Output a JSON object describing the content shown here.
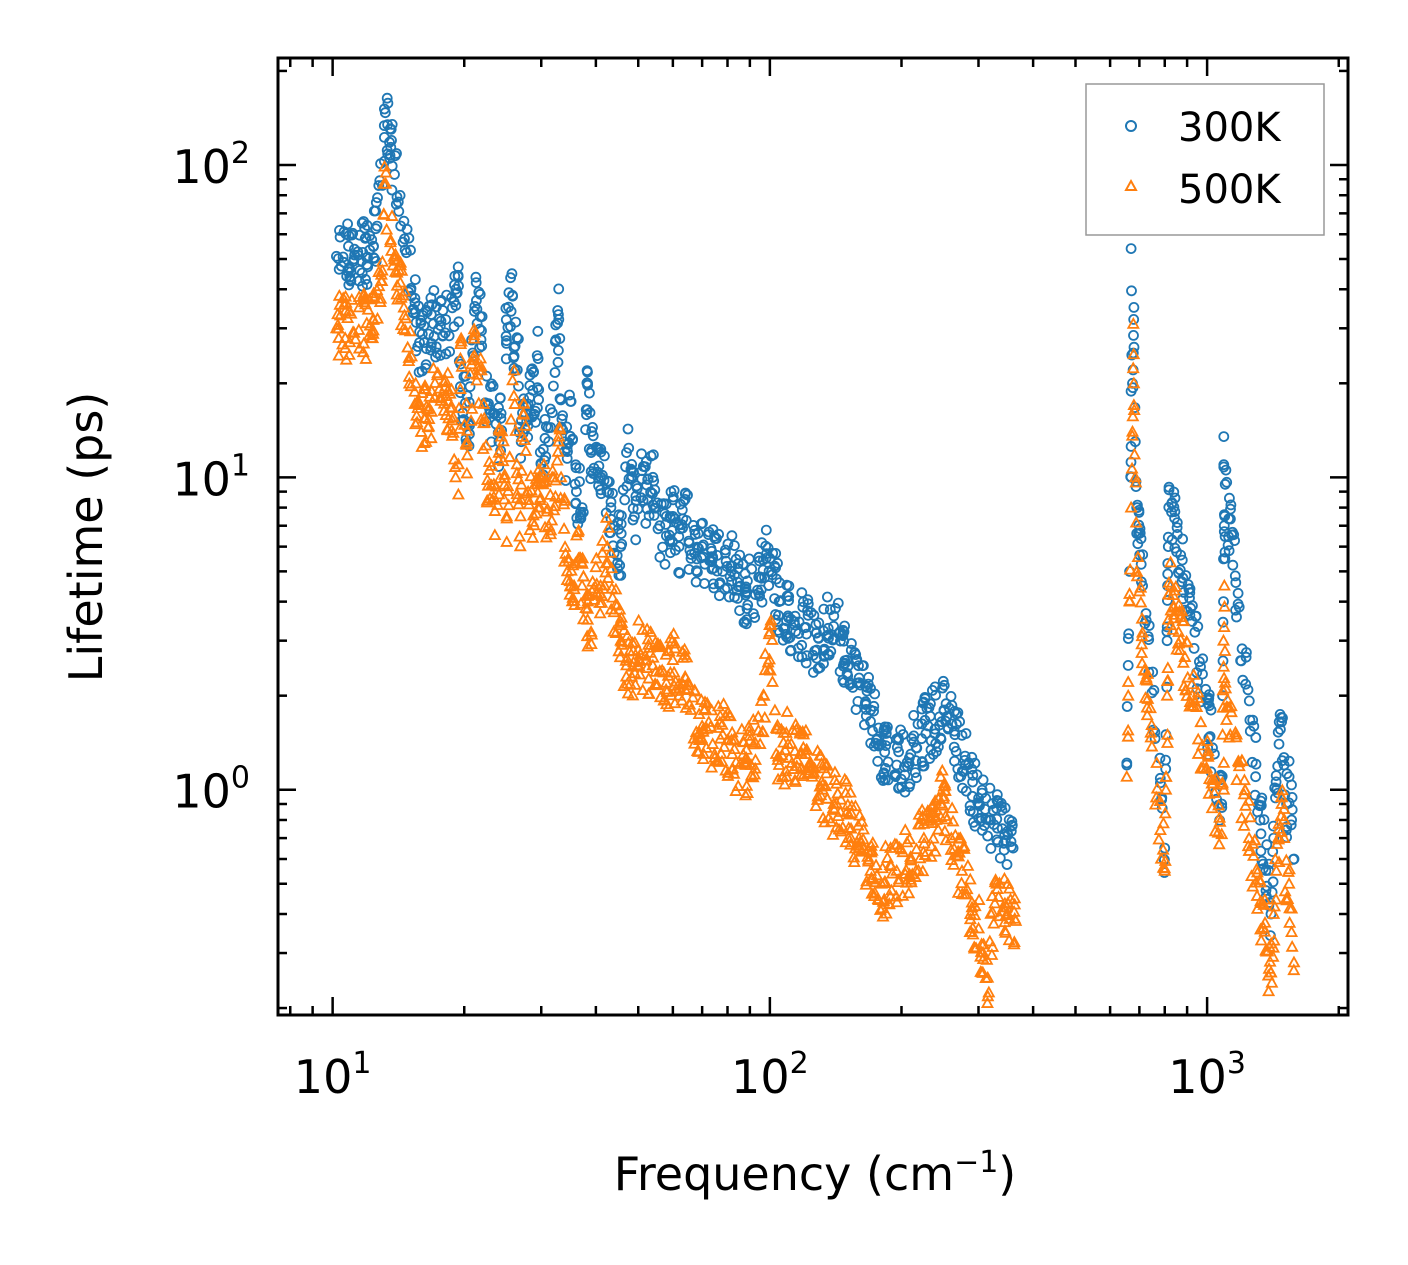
{
  "chart_data": {
    "type": "scatter",
    "title": "",
    "xlabel": "Frequency (cm",
    "xlabel_sup": "−1",
    "xlabel_tail": ")",
    "ylabel": "Lifetime (ps)",
    "xscale": "log",
    "yscale": "log",
    "xlim": [
      7.5,
      2100
    ],
    "ylim": [
      0.19,
      220
    ],
    "x_ticks": [
      {
        "value": 10,
        "base": "10",
        "exp": "1"
      },
      {
        "value": 100,
        "base": "10",
        "exp": "2"
      },
      {
        "value": 1000,
        "base": "10",
        "exp": "3"
      }
    ],
    "y_ticks": [
      {
        "value": 1,
        "base": "10",
        "exp": "0"
      },
      {
        "value": 10,
        "base": "10",
        "exp": "1"
      },
      {
        "value": 100,
        "base": "10",
        "exp": "2"
      }
    ],
    "legend_position": "top-right",
    "series": [
      {
        "name": "300K",
        "color": "#1f77b4",
        "marker": "circle",
        "points": [
          [
            10.2,
            51
          ],
          [
            11.2,
            50
          ],
          [
            12.4,
            55
          ],
          [
            13.2,
            147
          ],
          [
            13.0,
            86
          ],
          [
            14.6,
            58
          ],
          [
            15.8,
            27
          ],
          [
            16.2,
            27
          ],
          [
            17.0,
            31
          ],
          [
            18.1,
            29
          ],
          [
            19.4,
            41
          ],
          [
            19.6,
            19.5
          ],
          [
            20.5,
            15
          ],
          [
            21.1,
            34
          ],
          [
            21.3,
            42
          ],
          [
            22.6,
            17
          ],
          [
            23.5,
            16
          ],
          [
            24.0,
            13
          ],
          [
            25.3,
            39
          ],
          [
            25.8,
            38
          ],
          [
            26.0,
            26
          ],
          [
            26.4,
            28
          ],
          [
            27.0,
            13
          ],
          [
            27.6,
            16
          ],
          [
            28.2,
            18
          ],
          [
            28.7,
            19
          ],
          [
            29.5,
            24
          ],
          [
            29.1,
            15
          ],
          [
            30.0,
            11
          ],
          [
            31.2,
            13
          ],
          [
            32.9,
            32
          ],
          [
            33.3,
            14.5
          ],
          [
            34.4,
            11.5
          ],
          [
            35.0,
            17.5
          ],
          [
            36.1,
            9
          ],
          [
            37.2,
            8
          ],
          [
            38.3,
            20
          ],
          [
            39.0,
            12
          ],
          [
            40.1,
            12.5
          ],
          [
            41.0,
            10
          ],
          [
            42.4,
            9
          ],
          [
            43.3,
            8
          ],
          [
            44.0,
            7
          ],
          [
            45.6,
            6
          ],
          [
            47.0,
            12
          ],
          [
            48.3,
            11
          ],
          [
            49.0,
            7.5
          ],
          [
            51.0,
            10.5
          ],
          [
            52.5,
            8.5
          ],
          [
            54.0,
            10
          ],
          [
            56.0,
            7
          ],
          [
            58.0,
            6.5
          ],
          [
            60.0,
            7.5
          ],
          [
            62.0,
            6
          ],
          [
            64.0,
            8.5
          ],
          [
            66.0,
            5.5
          ],
          [
            70.0,
            6
          ],
          [
            74.0,
            5.5
          ],
          [
            78.0,
            5
          ],
          [
            82.0,
            5.2
          ],
          [
            88.0,
            4.2
          ],
          [
            95.0,
            4.8
          ],
          [
            98.0,
            5.5
          ],
          [
            100.0,
            5.5
          ],
          [
            105.0,
            4
          ],
          [
            110.0,
            3.6
          ],
          [
            120.0,
            3.3
          ],
          [
            128.0,
            2.8
          ],
          [
            140.0,
            3.6
          ],
          [
            150.0,
            2.6
          ],
          [
            160.0,
            2.2
          ],
          [
            170.0,
            1.8
          ],
          [
            180.0,
            1.4
          ],
          [
            195.0,
            1.2
          ],
          [
            210.0,
            1.3
          ],
          [
            230.0,
            1.6
          ],
          [
            250.0,
            1.8
          ],
          [
            265.0,
            1.5
          ],
          [
            280.0,
            1.2
          ],
          [
            300.0,
            0.9
          ],
          [
            320.0,
            0.8
          ],
          [
            340.0,
            0.75
          ],
          [
            360.0,
            0.65
          ],
          [
            655.0,
            1.2
          ],
          [
            660.0,
            2.5
          ],
          [
            665.0,
            5
          ],
          [
            670.0,
            10
          ],
          [
            675.0,
            20
          ],
          [
            680.0,
            35
          ],
          [
            670.0,
            54
          ],
          [
            678.0,
            25
          ],
          [
            685.0,
            13
          ],
          [
            690.0,
            8
          ],
          [
            800.0,
            0.65
          ],
          [
            805.0,
            1.5
          ],
          [
            810.0,
            3
          ],
          [
            815.0,
            6
          ],
          [
            818.0,
            9.3
          ],
          [
            812.0,
            4.5
          ],
          [
            1080.0,
            0.9
          ],
          [
            1085.0,
            2
          ],
          [
            1090.0,
            4
          ],
          [
            1095.0,
            7
          ],
          [
            1100.0,
            9.5
          ],
          [
            1092.0,
            13.5
          ],
          [
            1098.0,
            5.5
          ],
          [
            1400.0,
            0.4
          ],
          [
            1420.0,
            0.7
          ],
          [
            1440.0,
            1
          ],
          [
            1460.0,
            1.4
          ],
          [
            1480.0,
            1.65
          ],
          [
            1500.0,
            1.2
          ],
          [
            1520.0,
            0.9
          ],
          [
            1540.0,
            1.1
          ],
          [
            1560.0,
            0.8
          ],
          [
            1580.0,
            0.6
          ]
        ]
      },
      {
        "name": "500K",
        "color": "#ff7f0e",
        "marker": "triangle",
        "points": [
          [
            10.2,
            30
          ],
          [
            11.2,
            29
          ],
          [
            12.4,
            32
          ],
          [
            13.1,
            87
          ],
          [
            13.0,
            49
          ],
          [
            14.6,
            33
          ],
          [
            15.6,
            15
          ],
          [
            16.3,
            15.5
          ],
          [
            17.1,
            18
          ],
          [
            18.4,
            17.5
          ],
          [
            19.4,
            11
          ],
          [
            19.6,
            24
          ],
          [
            20.3,
            13
          ],
          [
            21.1,
            24.5
          ],
          [
            21.6,
            22
          ],
          [
            22.6,
            9.8
          ],
          [
            23.5,
            7.8
          ],
          [
            24.3,
            13.5
          ],
          [
            25.0,
            7.5
          ],
          [
            26.0,
            22
          ],
          [
            26.4,
            11
          ],
          [
            26.9,
            7.5
          ],
          [
            27.3,
            16
          ],
          [
            28.0,
            9
          ],
          [
            28.7,
            7.2
          ],
          [
            29.5,
            8
          ],
          [
            30.3,
            9.5
          ],
          [
            31.2,
            7
          ],
          [
            32.9,
            13.5
          ],
          [
            33.3,
            10
          ],
          [
            34.4,
            5
          ],
          [
            35.0,
            4.5
          ],
          [
            36.5,
            5.5
          ],
          [
            37.2,
            4.5
          ],
          [
            38.3,
            3.5
          ],
          [
            39.0,
            3.2
          ],
          [
            40.1,
            5.5
          ],
          [
            41.0,
            4.5
          ],
          [
            42.5,
            6
          ],
          [
            44.0,
            3.7
          ],
          [
            45.6,
            3
          ],
          [
            47.0,
            2.5
          ],
          [
            48.3,
            2.3
          ],
          [
            50.0,
            2.8
          ],
          [
            52.0,
            2.6
          ],
          [
            54.0,
            2.5
          ],
          [
            56.0,
            2.4
          ],
          [
            58.0,
            2.2
          ],
          [
            60.0,
            2.6
          ],
          [
            62.0,
            2
          ],
          [
            64.0,
            2.3
          ],
          [
            66.0,
            1.8
          ],
          [
            70.0,
            1.6
          ],
          [
            74.0,
            1.4
          ],
          [
            78.0,
            1.5
          ],
          [
            82.0,
            1.3
          ],
          [
            88.0,
            1.2
          ],
          [
            95.0,
            1.4
          ],
          [
            100.0,
            3.2
          ],
          [
            105.0,
            1.2
          ],
          [
            110.0,
            1.4
          ],
          [
            118.0,
            1.3
          ],
          [
            125.0,
            1.1
          ],
          [
            132.0,
            1.0
          ],
          [
            140.0,
            0.9
          ],
          [
            150.0,
            0.85
          ],
          [
            160.0,
            0.7
          ],
          [
            170.0,
            0.55
          ],
          [
            180.0,
            0.5
          ],
          [
            195.0,
            0.55
          ],
          [
            210.0,
            0.6
          ],
          [
            225.0,
            0.7
          ],
          [
            240.0,
            0.8
          ],
          [
            250.0,
            0.95
          ],
          [
            260.0,
            0.7
          ],
          [
            275.0,
            0.55
          ],
          [
            290.0,
            0.42
          ],
          [
            305.0,
            0.32
          ],
          [
            315.0,
            0.25
          ],
          [
            330.0,
            0.5
          ],
          [
            350.0,
            0.4
          ],
          [
            365.0,
            0.38
          ],
          [
            655.0,
            1.1
          ],
          [
            660.0,
            2
          ],
          [
            665.0,
            4
          ],
          [
            670.0,
            8
          ],
          [
            675.0,
            14
          ],
          [
            678.0,
            31
          ],
          [
            680.0,
            20
          ],
          [
            685.0,
            10
          ],
          [
            690.0,
            5
          ],
          [
            800.0,
            0.55
          ],
          [
            805.0,
            1
          ],
          [
            810.0,
            2
          ],
          [
            815.0,
            3.5
          ],
          [
            818.0,
            4.6
          ],
          [
            812.0,
            1.5
          ],
          [
            1080.0,
            0.72
          ],
          [
            1085.0,
            1.5
          ],
          [
            1090.0,
            3
          ],
          [
            1095.0,
            4.5
          ],
          [
            1100.0,
            2.2
          ],
          [
            1092.0,
            1
          ],
          [
            1400.0,
            0.26
          ],
          [
            1420.0,
            0.4
          ],
          [
            1440.0,
            0.55
          ],
          [
            1460.0,
            0.75
          ],
          [
            1480.0,
            0.95
          ],
          [
            1500.0,
            0.7
          ],
          [
            1520.0,
            0.45
          ],
          [
            1540.0,
            0.5
          ],
          [
            1560.0,
            0.35
          ],
          [
            1580.0,
            0.28
          ]
        ]
      }
    ]
  }
}
